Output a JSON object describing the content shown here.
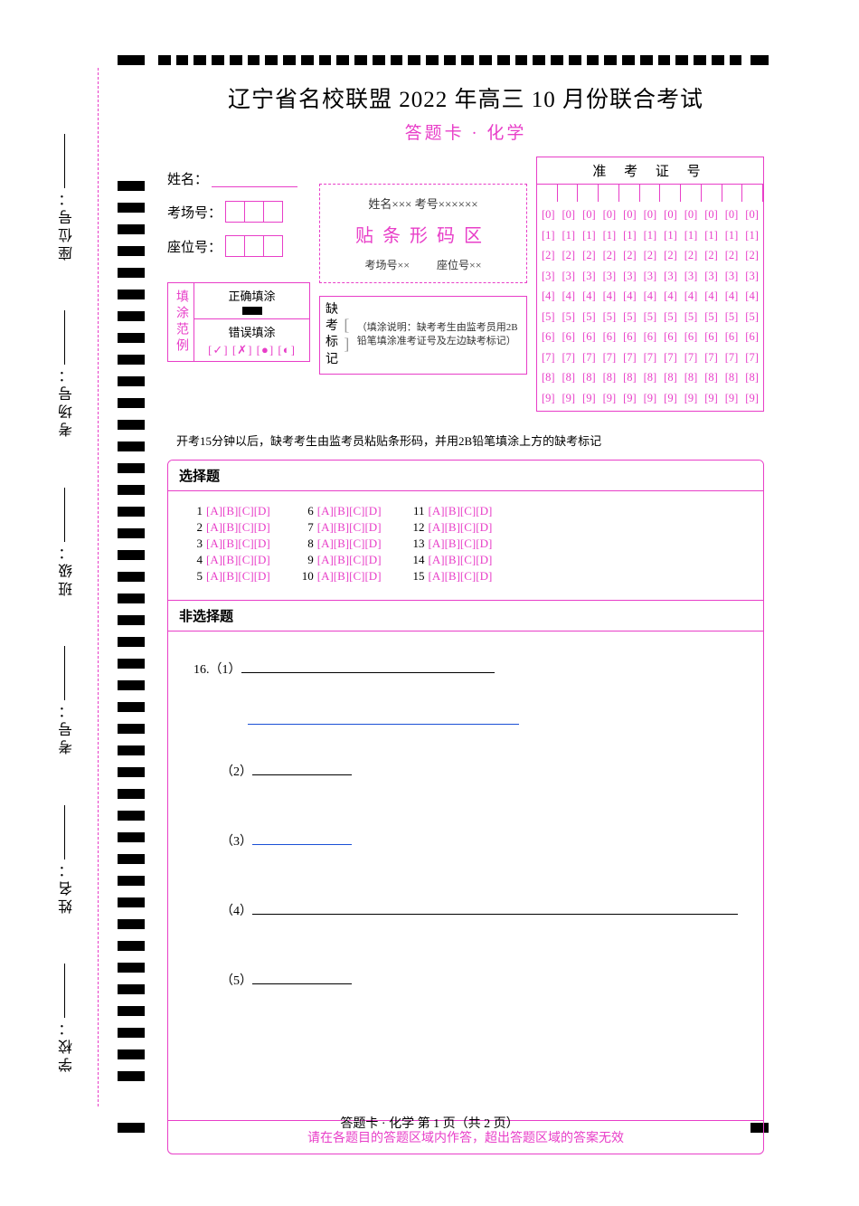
{
  "title": "辽宁省名校联盟 2022 年高三 10 月份联合考试",
  "subtitle": "答题卡 · 化学",
  "side_labels": [
    "学校：",
    "姓名：",
    "考号：",
    "班级：",
    "考场号：",
    "座位号："
  ],
  "info": {
    "name_label": "姓名：",
    "room_label": "考场号：",
    "seat_label": "座位号："
  },
  "barcode": {
    "line1": "姓名×××  考号××××××",
    "title": "贴条形码区",
    "room": "考场号××",
    "seat": "座位号××"
  },
  "admission": {
    "title": "准 考 证 号",
    "cols": 11,
    "digits": [
      "0",
      "1",
      "2",
      "3",
      "4",
      "5",
      "6",
      "7",
      "8",
      "9"
    ]
  },
  "example": {
    "side": "填涂范例",
    "ok": "正确填涂",
    "bad": "错误填涂",
    "bad_marks": "[✓] [✗] [●] [◐]"
  },
  "absent": {
    "left1": "缺考",
    "left2": "标记",
    "note": "（填涂说明：缺考考生由监考员用2B铅笔填涂准考证号及左边缺考标记）"
  },
  "preexam_note": "开考15分钟以后，缺考考生由监考员粘贴条形码，并用2B铅笔填涂上方的缺考标记",
  "mcq": {
    "header": "选择题",
    "options": "[A][B][C][D]",
    "count": 15,
    "per_col": 5
  },
  "free": {
    "header": "非选择题",
    "q_prefix": "16.",
    "parts": [
      "（1）",
      "（2）",
      "（3）",
      "（4）",
      "（5）"
    ]
  },
  "footer_note": "请在各题目的答题区域内作答，超出答题区域的答案无效",
  "page_foot": "答题卡 · 化学  第 1 页（共 2 页）",
  "colors": {
    "accent": "#e83ec8",
    "text": "#000000",
    "blue": "#1a4fd6"
  }
}
